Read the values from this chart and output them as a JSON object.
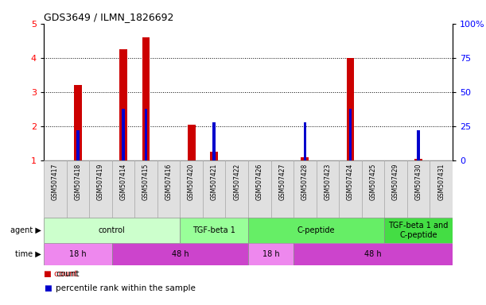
{
  "title": "GDS3649 / ILMN_1826692",
  "samples": [
    "GSM507417",
    "GSM507418",
    "GSM507419",
    "GSM507414",
    "GSM507415",
    "GSM507416",
    "GSM507420",
    "GSM507421",
    "GSM507422",
    "GSM507426",
    "GSM507427",
    "GSM507428",
    "GSM507423",
    "GSM507424",
    "GSM507425",
    "GSM507429",
    "GSM507430",
    "GSM507431"
  ],
  "count_values": [
    1.0,
    3.2,
    1.0,
    4.25,
    4.6,
    1.0,
    2.05,
    1.25,
    1.0,
    1.0,
    1.0,
    1.1,
    1.0,
    4.0,
    1.0,
    1.0,
    1.05,
    1.0
  ],
  "percentile_values": [
    0.0,
    0.22,
    0.0,
    0.38,
    0.38,
    0.0,
    0.0,
    0.28,
    0.0,
    0.0,
    0.0,
    0.28,
    0.0,
    0.38,
    0.0,
    0.0,
    0.22,
    0.0
  ],
  "ylim_left": [
    1,
    5
  ],
  "ylim_right": [
    0,
    100
  ],
  "yticks_left": [
    1,
    2,
    3,
    4,
    5
  ],
  "yticks_right": [
    0,
    25,
    50,
    75,
    100
  ],
  "ytick_labels_right": [
    "0",
    "25",
    "50",
    "75",
    "100%"
  ],
  "bar_color_red": "#cc0000",
  "bar_color_blue": "#0000cc",
  "agent_groups": [
    {
      "label": "control",
      "start": 0,
      "end": 6,
      "color": "#ccffcc"
    },
    {
      "label": "TGF-beta 1",
      "start": 6,
      "end": 9,
      "color": "#99ff99"
    },
    {
      "label": "C-peptide",
      "start": 9,
      "end": 15,
      "color": "#66ee66"
    },
    {
      "label": "TGF-beta 1 and\nC-peptide",
      "start": 15,
      "end": 18,
      "color": "#44dd44"
    }
  ],
  "time_groups": [
    {
      "label": "18 h",
      "start": 0,
      "end": 3,
      "color": "#ee88ee"
    },
    {
      "label": "48 h",
      "start": 3,
      "end": 9,
      "color": "#cc44cc"
    },
    {
      "label": "18 h",
      "start": 9,
      "end": 11,
      "color": "#ee88ee"
    },
    {
      "label": "48 h",
      "start": 11,
      "end": 18,
      "color": "#cc44cc"
    }
  ],
  "background_color": "#ffffff",
  "bar_width": 0.35,
  "blue_bar_width": 0.12
}
